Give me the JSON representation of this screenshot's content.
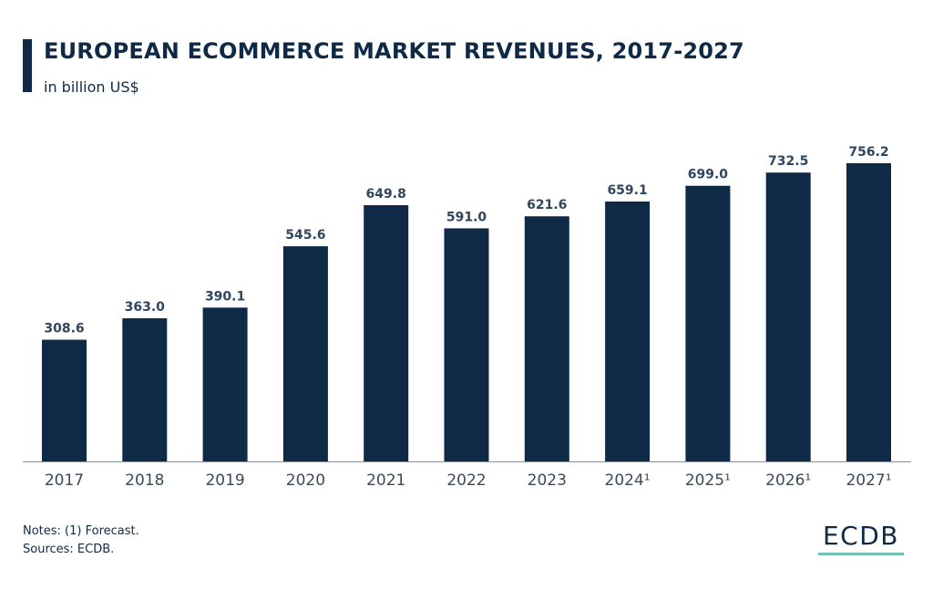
{
  "header": {
    "title": "EUROPEAN ECOMMERCE MARKET REVENUES, 2017-2027",
    "subtitle": "in billion US$"
  },
  "footer": {
    "note_line": "Notes: (1) Forecast.",
    "source_line": "Sources: ECDB.",
    "logo": "ECDB"
  },
  "colors": {
    "bar": "#0f2a47",
    "text": "#0f2a47",
    "axis_label": "#3b4a5a",
    "logo_underline": "#6fc2b4"
  },
  "chart_data": {
    "type": "bar",
    "title": "EUROPEAN ECOMMERCE MARKET REVENUES, 2017-2027",
    "subtitle": "in billion US$",
    "categories": [
      "2017",
      "2018",
      "2019",
      "2020",
      "2021",
      "2022",
      "2023",
      "2024¹",
      "2025¹",
      "2026¹",
      "2027¹"
    ],
    "values": [
      308.6,
      363.0,
      390.1,
      545.6,
      649.8,
      591.0,
      621.6,
      659.1,
      699.0,
      732.5,
      756.2
    ],
    "value_labels": [
      "308.6",
      "363.0",
      "390.1",
      "545.6",
      "649.8",
      "591.0",
      "621.6",
      "659.1",
      "699.0",
      "732.5",
      "756.2"
    ],
    "ylim": [
      0,
      756.2
    ],
    "grid": false,
    "legend": "none"
  }
}
